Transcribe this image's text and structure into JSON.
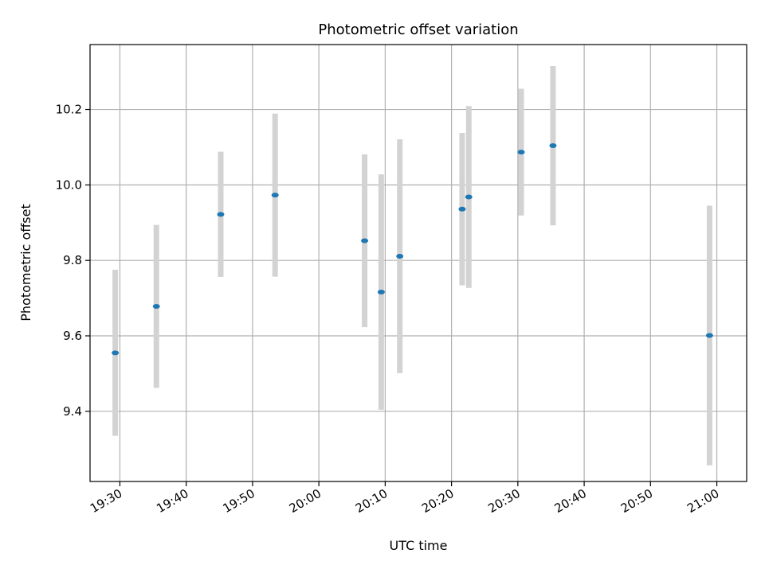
{
  "chart_data": {
    "type": "scatter",
    "title": "Photometric offset variation",
    "xlabel": "UTC time",
    "ylabel": "Photometric offset",
    "x_ticks": [
      "19:30",
      "19:40",
      "19:50",
      "20:00",
      "20:10",
      "20:20",
      "20:30",
      "20:40",
      "20:50",
      "21:00"
    ],
    "y_ticks": [
      "9.4",
      "9.6",
      "9.8",
      "10.0",
      "10.2"
    ],
    "xlim": [
      "19:25.5",
      "21:04.5"
    ],
    "ylim": [
      9.214,
      10.372
    ],
    "grid": true,
    "marker_color": "#1f77b4",
    "errorbar_color": "#d3d3d3",
    "points": [
      {
        "x": "19:29.3",
        "y": 9.555,
        "yerr_low": 9.335,
        "yerr_high": 9.775
      },
      {
        "x": "19:35.5",
        "y": 9.678,
        "yerr_low": 9.462,
        "yerr_high": 9.894
      },
      {
        "x": "19:45.2",
        "y": 9.922,
        "yerr_low": 9.756,
        "yerr_high": 10.088
      },
      {
        "x": "19:53.4",
        "y": 9.973,
        "yerr_low": 9.757,
        "yerr_high": 10.189
      },
      {
        "x": "20:06.9",
        "y": 9.852,
        "yerr_low": 9.623,
        "yerr_high": 10.081
      },
      {
        "x": "20:09.4",
        "y": 9.716,
        "yerr_low": 9.404,
        "yerr_high": 10.028
      },
      {
        "x": "20:12.2",
        "y": 9.811,
        "yerr_low": 9.501,
        "yerr_high": 10.121
      },
      {
        "x": "20:21.6",
        "y": 9.936,
        "yerr_low": 9.734,
        "yerr_high": 10.138
      },
      {
        "x": "20:22.6",
        "y": 9.968,
        "yerr_low": 9.727,
        "yerr_high": 10.209
      },
      {
        "x": "20:30.5",
        "y": 10.087,
        "yerr_low": 9.919,
        "yerr_high": 10.255
      },
      {
        "x": "20:35.3",
        "y": 10.104,
        "yerr_low": 9.893,
        "yerr_high": 10.315
      },
      {
        "x": "20:58.9",
        "y": 9.601,
        "yerr_low": 9.257,
        "yerr_high": 9.945
      }
    ]
  }
}
